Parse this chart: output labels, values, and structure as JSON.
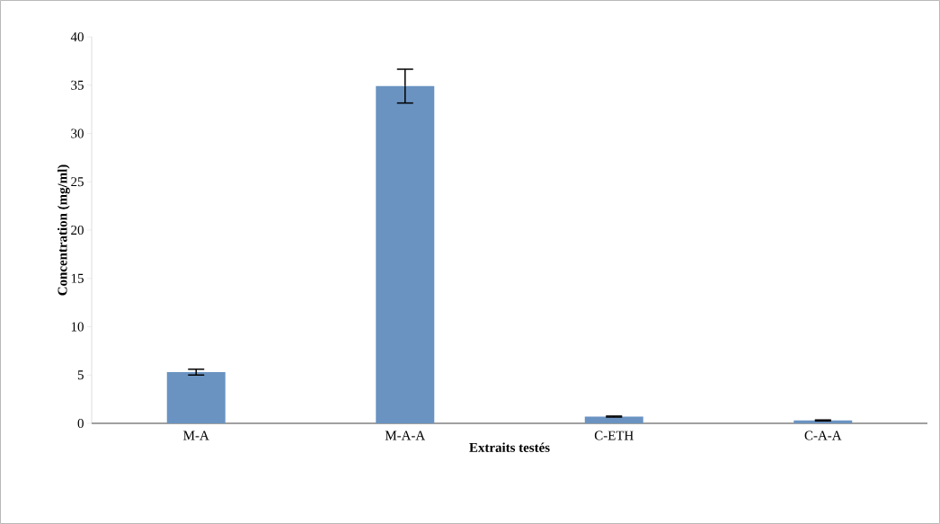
{
  "chart_data": {
    "type": "bar",
    "xlabel": "Extraits testés",
    "ylabel": "Concentration (mg/ml)",
    "categories": [
      "M-A",
      "M-A-A",
      "C-ETH",
      "C-A-A"
    ],
    "values": [
      5.3,
      34.9,
      0.7,
      0.3
    ],
    "errors": [
      0.3,
      1.75,
      0.05,
      0.05
    ],
    "color": "#6a93c2",
    "ylim": [
      0,
      40
    ],
    "yticks": [
      0,
      5,
      10,
      15,
      20,
      25,
      30,
      35,
      40
    ],
    "grid": false
  }
}
